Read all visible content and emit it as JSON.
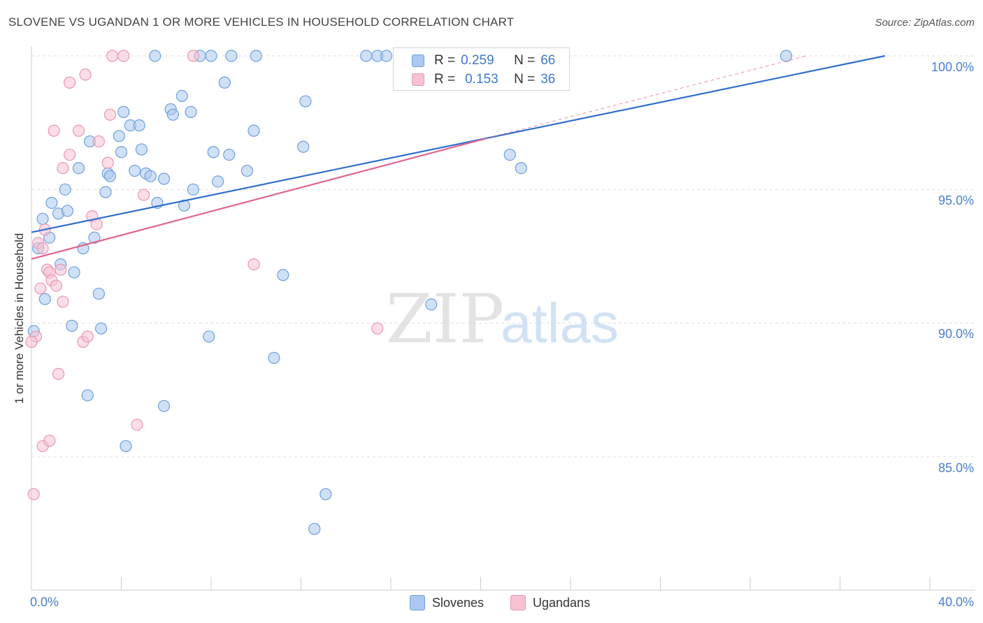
{
  "title": "SLOVENE VS UGANDAN 1 OR MORE VEHICLES IN HOUSEHOLD CORRELATION CHART",
  "source": "Source: ZipAtlas.com",
  "watermark": {
    "zip": "ZIP",
    "atlas": "atlas"
  },
  "legend": {
    "r_label": "R =",
    "n_label": "N =",
    "slovenes": {
      "r": "0.259",
      "n": "66"
    },
    "ugandans": {
      "r": "0.153",
      "n": "36"
    }
  },
  "bottom_legend": {
    "slovenes": "Slovenes",
    "ugandans": "Ugandans"
  },
  "colors": {
    "slovene_fill": "#aac8f0",
    "slovene_stroke": "#6e9fdc",
    "slovene_line": "#2f6fcc",
    "ugandan_fill": "#f7c3d3",
    "ugandan_stroke": "#e996b3",
    "ugandan_line": "#e0648e",
    "tick_text": "#4a7fd0",
    "grid": "#dddddd"
  },
  "chart_data": {
    "type": "scatter",
    "title": "SLOVENE VS UGANDAN 1 OR MORE VEHICLES IN HOUSEHOLD CORRELATION CHART",
    "xlabel": "",
    "ylabel": "1 or more Vehicles in Household",
    "xlim": [
      0,
      40
    ],
    "ylim": [
      80.5,
      100.5
    ],
    "x_tick_labels": [
      "0.0%",
      "40.0%"
    ],
    "y_ticks": [
      85,
      90,
      95,
      100
    ],
    "y_tick_labels": [
      "85.0%",
      "90.0%",
      "95.0%",
      "100.0%"
    ],
    "grid": true,
    "series": [
      {
        "name": "Slovenes",
        "r": 0.259,
        "n": 66,
        "trend": {
          "x": [
            0,
            38
          ],
          "y": [
            93.4,
            100.0
          ]
        },
        "points": [
          [
            0.1,
            89.7
          ],
          [
            0.3,
            92.8
          ],
          [
            0.5,
            93.9
          ],
          [
            0.6,
            90.9
          ],
          [
            0.8,
            93.2
          ],
          [
            0.9,
            94.5
          ],
          [
            1.2,
            94.1
          ],
          [
            1.3,
            92.2
          ],
          [
            1.5,
            95.0
          ],
          [
            1.6,
            94.2
          ],
          [
            1.8,
            89.9
          ],
          [
            1.9,
            91.9
          ],
          [
            2.1,
            95.8
          ],
          [
            2.3,
            92.8
          ],
          [
            2.5,
            87.3
          ],
          [
            2.6,
            96.8
          ],
          [
            2.8,
            93.2
          ],
          [
            3.0,
            91.1
          ],
          [
            3.1,
            89.8
          ],
          [
            3.3,
            94.9
          ],
          [
            3.4,
            95.6
          ],
          [
            3.5,
            95.5
          ],
          [
            3.9,
            97.0
          ],
          [
            4.0,
            96.4
          ],
          [
            4.1,
            97.9
          ],
          [
            4.2,
            85.4
          ],
          [
            4.4,
            97.4
          ],
          [
            4.6,
            95.7
          ],
          [
            4.8,
            97.4
          ],
          [
            4.9,
            96.5
          ],
          [
            5.1,
            95.6
          ],
          [
            5.3,
            95.5
          ],
          [
            5.5,
            100.0
          ],
          [
            5.6,
            94.5
          ],
          [
            5.9,
            86.9
          ],
          [
            5.9,
            95.4
          ],
          [
            6.2,
            98.0
          ],
          [
            6.3,
            97.8
          ],
          [
            6.7,
            98.5
          ],
          [
            6.8,
            94.4
          ],
          [
            7.1,
            97.9
          ],
          [
            7.2,
            95.0
          ],
          [
            7.5,
            100.0
          ],
          [
            7.9,
            89.5
          ],
          [
            8.0,
            100.0
          ],
          [
            8.1,
            96.4
          ],
          [
            8.3,
            95.3
          ],
          [
            8.6,
            99.0
          ],
          [
            8.8,
            96.3
          ],
          [
            8.9,
            100.0
          ],
          [
            9.6,
            95.7
          ],
          [
            9.9,
            97.2
          ],
          [
            10.0,
            100.0
          ],
          [
            10.8,
            88.7
          ],
          [
            11.2,
            91.8
          ],
          [
            12.1,
            96.6
          ],
          [
            12.2,
            98.3
          ],
          [
            12.6,
            82.3
          ],
          [
            13.1,
            83.6
          ],
          [
            14.9,
            100.0
          ],
          [
            15.4,
            100.0
          ],
          [
            15.8,
            100.0
          ],
          [
            17.8,
            90.7
          ],
          [
            21.3,
            96.3
          ],
          [
            21.8,
            95.8
          ],
          [
            33.6,
            100.0
          ]
        ]
      },
      {
        "name": "Ugandans",
        "r": 0.153,
        "n": 36,
        "trend": {
          "x": [
            0,
            20.2
          ],
          "y": [
            92.4,
            96.9
          ]
        },
        "dashed_extension": {
          "x": [
            20.2,
            34.5
          ],
          "y": [
            96.9,
            100.0
          ]
        },
        "points": [
          [
            0.1,
            83.6
          ],
          [
            0.2,
            89.5
          ],
          [
            0.3,
            93.0
          ],
          [
            0.4,
            91.3
          ],
          [
            0.5,
            92.8
          ],
          [
            0.5,
            85.4
          ],
          [
            0.6,
            93.5
          ],
          [
            0.7,
            92.0
          ],
          [
            0.8,
            91.9
          ],
          [
            0.8,
            85.6
          ],
          [
            0.9,
            91.6
          ],
          [
            1.0,
            97.2
          ],
          [
            1.1,
            91.4
          ],
          [
            1.2,
            88.1
          ],
          [
            1.3,
            92.0
          ],
          [
            1.4,
            90.8
          ],
          [
            1.4,
            95.8
          ],
          [
            1.7,
            96.3
          ],
          [
            1.7,
            99.0
          ],
          [
            2.1,
            97.2
          ],
          [
            2.3,
            89.3
          ],
          [
            2.4,
            99.3
          ],
          [
            2.5,
            89.5
          ],
          [
            2.7,
            94.0
          ],
          [
            2.9,
            93.7
          ],
          [
            3.0,
            96.8
          ],
          [
            3.4,
            96.0
          ],
          [
            3.5,
            97.8
          ],
          [
            3.6,
            100.0
          ],
          [
            4.1,
            100.0
          ],
          [
            4.7,
            86.2
          ],
          [
            5.0,
            94.8
          ],
          [
            7.2,
            100.0
          ],
          [
            9.9,
            92.2
          ],
          [
            15.4,
            89.8
          ],
          [
            0.0,
            89.3
          ]
        ]
      }
    ]
  }
}
